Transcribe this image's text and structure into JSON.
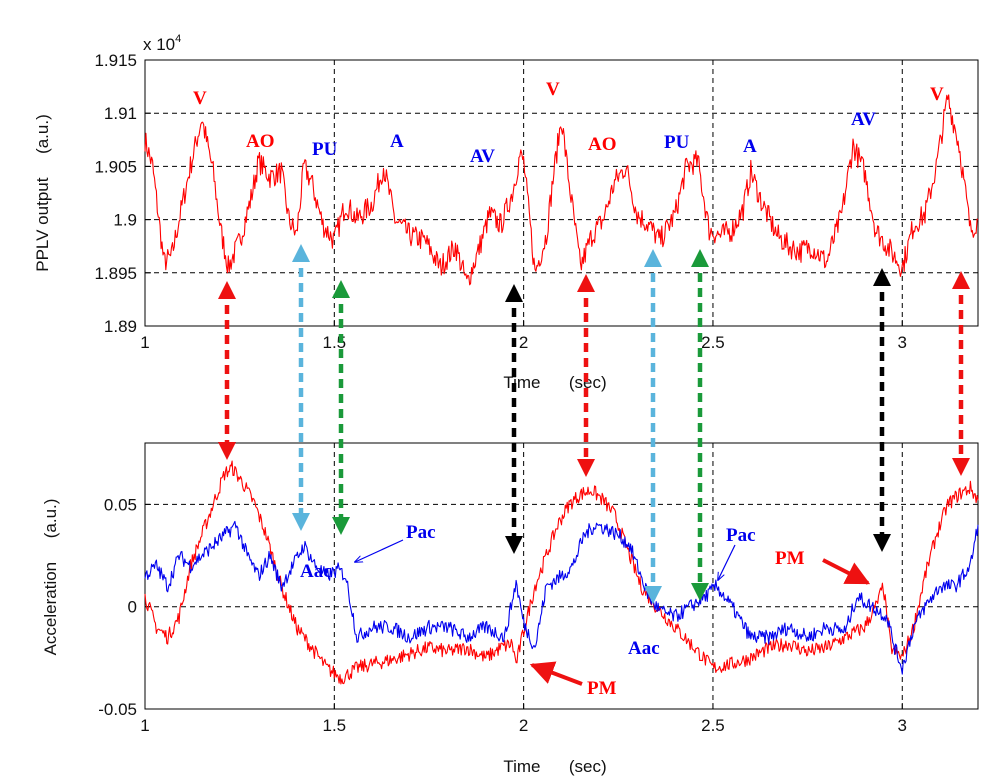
{
  "colors": {
    "red": "#ff0000",
    "blue": "#0000ee",
    "arrow_red": "#ee1111",
    "arrow_cyan": "#5ab4dc",
    "arrow_green": "#1a9a3a",
    "arrow_black": "#000000"
  },
  "chart_data": [
    {
      "type": "line",
      "name": "PPLV output",
      "ylabel": "PPLV output     (a.u.)",
      "xlabel": "Time      (sec)",
      "exponent_label": "x 10",
      "exponent_power": "4",
      "xlim": [
        1,
        3.2
      ],
      "ylim": [
        1.89,
        1.915
      ],
      "xticks": [
        1,
        1.5,
        2,
        2.5,
        3
      ],
      "xtick_labels": [
        "1",
        "1.5",
        "2",
        "2.5",
        "3"
      ],
      "yticks": [
        1.89,
        1.895,
        1.9,
        1.905,
        1.91,
        1.915
      ],
      "ytick_labels": [
        "1.89",
        "1.895",
        "1.9",
        "1.905",
        "1.91",
        "1.915"
      ],
      "grid": true,
      "series": [
        {
          "name": "PPLV",
          "color": "#ff0000",
          "x": [
            1.0,
            1.02,
            1.04,
            1.05,
            1.07,
            1.09,
            1.12,
            1.15,
            1.18,
            1.2,
            1.22,
            1.25,
            1.28,
            1.3,
            1.33,
            1.36,
            1.38,
            1.4,
            1.42,
            1.44,
            1.47,
            1.5,
            1.53,
            1.56,
            1.6,
            1.63,
            1.66,
            1.7,
            1.74,
            1.78,
            1.82,
            1.85,
            1.88,
            1.91,
            1.94,
            1.97,
            1.99,
            2.0,
            2.03,
            2.06,
            2.08,
            2.1,
            2.12,
            2.15,
            2.18,
            2.21,
            2.24,
            2.27,
            2.3,
            2.33,
            2.36,
            2.4,
            2.43,
            2.46,
            2.49,
            2.52,
            2.55,
            2.58,
            2.6,
            2.63,
            2.67,
            2.7,
            2.73,
            2.76,
            2.8,
            2.84,
            2.87,
            2.9,
            2.93,
            2.96,
            3.0,
            3.03,
            3.06,
            3.09,
            3.12,
            3.15,
            3.18,
            3.2
          ],
          "y": [
            1.9075,
            1.905,
            1.899,
            1.896,
            1.8965,
            1.9,
            1.905,
            1.9095,
            1.9045,
            1.899,
            1.8955,
            1.898,
            1.902,
            1.9055,
            1.904,
            1.9045,
            1.9,
            1.8985,
            1.905,
            1.9035,
            1.8995,
            1.898,
            1.9015,
            1.9,
            1.9015,
            1.905,
            1.9,
            1.8985,
            1.898,
            1.8955,
            1.8975,
            1.894,
            1.897,
            1.9005,
            1.8995,
            1.9025,
            1.906,
            1.9055,
            1.895,
            1.8985,
            1.9045,
            1.9095,
            1.9035,
            1.8955,
            1.8985,
            1.9,
            1.9035,
            1.905,
            1.9005,
            1.8995,
            1.898,
            1.9005,
            1.905,
            1.9055,
            1.899,
            1.8985,
            1.899,
            1.901,
            1.9045,
            1.9015,
            1.8985,
            1.8975,
            1.897,
            1.8975,
            1.896,
            1.9005,
            1.907,
            1.9045,
            1.899,
            1.8975,
            1.8955,
            1.8995,
            1.9005,
            1.905,
            1.9115,
            1.907,
            1.899,
            1.9
          ]
        }
      ],
      "annotations": [
        {
          "text": "V",
          "color": "#ff0000"
        },
        {
          "text": "AO",
          "color": "#ff0000"
        },
        {
          "text": "PU",
          "color": "#0000ee"
        },
        {
          "text": "A",
          "color": "#0000ee"
        },
        {
          "text": "AV",
          "color": "#0000ee"
        },
        {
          "text": "V",
          "color": "#ff0000"
        },
        {
          "text": "AO",
          "color": "#ff0000"
        },
        {
          "text": "PU",
          "color": "#0000ee"
        },
        {
          "text": "A",
          "color": "#0000ee"
        },
        {
          "text": "AV",
          "color": "#0000ee"
        },
        {
          "text": "V",
          "color": "#ff0000"
        }
      ]
    },
    {
      "type": "line",
      "name": "Acceleration",
      "ylabel": "Acceleration     (a.u.)",
      "xlabel": "Time      (sec)",
      "xlim": [
        1,
        3.2
      ],
      "ylim": [
        -0.05,
        0.08
      ],
      "xticks": [
        1,
        1.5,
        2,
        2.5,
        3
      ],
      "xtick_labels": [
        "1",
        "1.5",
        "2",
        "2.5",
        "3"
      ],
      "yticks": [
        -0.05,
        0,
        0.05
      ],
      "ytick_labels": [
        "-0.05",
        "0",
        "0.05"
      ],
      "grid": true,
      "series": [
        {
          "name": "PM (red)",
          "color": "#ff0000",
          "x": [
            1.0,
            1.03,
            1.06,
            1.09,
            1.12,
            1.15,
            1.18,
            1.21,
            1.23,
            1.26,
            1.29,
            1.32,
            1.36,
            1.4,
            1.44,
            1.48,
            1.52,
            1.56,
            1.6,
            1.65,
            1.7,
            1.75,
            1.8,
            1.85,
            1.9,
            1.94,
            1.97,
            1.98,
            2.0,
            2.03,
            2.06,
            2.09,
            2.12,
            2.15,
            2.18,
            2.21,
            2.24,
            2.27,
            2.31,
            2.35,
            2.4,
            2.45,
            2.5,
            2.55,
            2.6,
            2.65,
            2.7,
            2.75,
            2.8,
            2.85,
            2.9,
            2.93,
            2.95,
            2.97,
            3.0,
            3.03,
            3.06,
            3.09,
            3.12,
            3.15,
            3.18,
            3.2
          ],
          "y": [
            0.005,
            -0.01,
            -0.015,
            -0.005,
            0.02,
            0.035,
            0.05,
            0.065,
            0.068,
            0.06,
            0.05,
            0.035,
            0.01,
            -0.01,
            -0.02,
            -0.03,
            -0.035,
            -0.03,
            -0.028,
            -0.026,
            -0.023,
            -0.02,
            -0.022,
            -0.02,
            -0.025,
            -0.02,
            -0.018,
            -0.028,
            -0.012,
            0.01,
            0.025,
            0.04,
            0.05,
            0.055,
            0.057,
            0.052,
            0.045,
            0.03,
            0.01,
            0.0,
            -0.01,
            -0.02,
            -0.03,
            -0.028,
            -0.025,
            -0.02,
            -0.018,
            -0.022,
            -0.02,
            -0.015,
            -0.01,
            0.0,
            0.01,
            -0.02,
            -0.025,
            -0.01,
            0.015,
            0.035,
            0.05,
            0.055,
            0.058,
            0.052
          ]
        },
        {
          "name": "Aac/Pac (blue)",
          "color": "#0000ee",
          "x": [
            1.0,
            1.03,
            1.06,
            1.09,
            1.12,
            1.15,
            1.18,
            1.21,
            1.24,
            1.27,
            1.3,
            1.33,
            1.36,
            1.39,
            1.42,
            1.45,
            1.48,
            1.51,
            1.53,
            1.56,
            1.6,
            1.65,
            1.7,
            1.75,
            1.8,
            1.85,
            1.9,
            1.95,
            1.98,
            2.0,
            2.03,
            2.06,
            2.1,
            2.13,
            2.16,
            2.19,
            2.22,
            2.25,
            2.28,
            2.3,
            2.33,
            2.36,
            2.4,
            2.44,
            2.48,
            2.51,
            2.55,
            2.6,
            2.65,
            2.7,
            2.75,
            2.8,
            2.85,
            2.88,
            2.92,
            2.96,
            2.98,
            3.0,
            3.03,
            3.06,
            3.1,
            3.14,
            3.18,
            3.2
          ],
          "y": [
            0.015,
            0.02,
            0.01,
            0.025,
            0.02,
            0.025,
            0.03,
            0.035,
            0.04,
            0.025,
            0.015,
            0.025,
            0.01,
            0.02,
            0.03,
            0.02,
            0.015,
            0.018,
            0.015,
            -0.015,
            -0.01,
            -0.01,
            -0.015,
            -0.01,
            -0.01,
            -0.015,
            -0.01,
            -0.015,
            0.012,
            -0.008,
            -0.02,
            0.01,
            0.015,
            0.02,
            0.035,
            0.04,
            0.038,
            0.035,
            0.03,
            0.02,
            0.005,
            -0.002,
            -0.005,
            0.0,
            0.005,
            0.01,
            0.0,
            -0.015,
            -0.015,
            -0.01,
            -0.015,
            -0.01,
            -0.012,
            0.005,
            0.0,
            -0.005,
            -0.02,
            -0.03,
            -0.01,
            0.0,
            0.01,
            0.01,
            0.02,
            0.04
          ]
        }
      ],
      "annotations": [
        {
          "text": "Pac",
          "color": "#0000ee"
        },
        {
          "text": "Aac",
          "color": "#0000ee"
        },
        {
          "text": "PM",
          "color": "#ff0000"
        },
        {
          "text": "Pac",
          "color": "#0000ee"
        },
        {
          "text": "Aac",
          "color": "#0000ee"
        },
        {
          "text": "PM",
          "color": "#ff0000"
        }
      ]
    }
  ]
}
